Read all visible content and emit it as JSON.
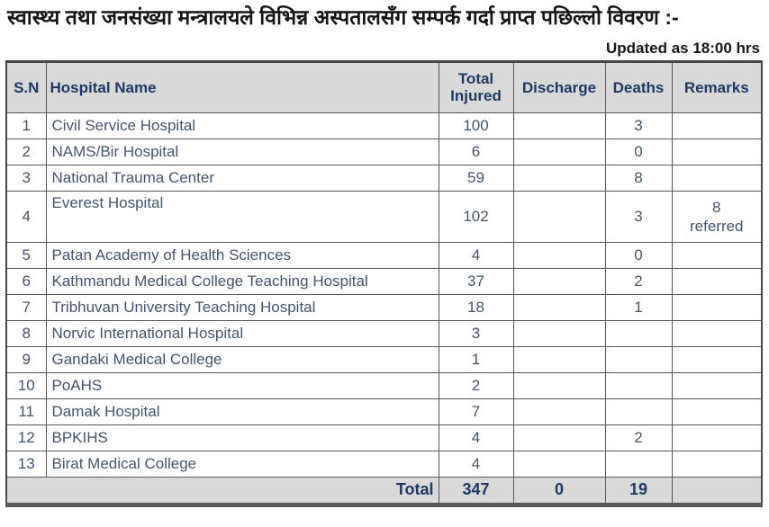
{
  "title": "स्वास्थ्य तथा जनसंख्या मन्त्रालयले विभिन्न अस्पतालसँग सम्पर्क गर्दा प्राप्त पछिल्लो विवरण :-",
  "updated": "Updated as 18:00 hrs",
  "colors": {
    "header_bg": "#d9d9d9",
    "header_text": "#1f3864",
    "body_text": "#44546a",
    "border": "#565656"
  },
  "table": {
    "headers": [
      "S.N",
      "Hospital Name",
      "Total Injured",
      "Discharge",
      "Deaths",
      "Remarks"
    ],
    "rows": [
      {
        "sn": "1",
        "name": "Civil Service Hospital",
        "injured": "100",
        "discharge": "",
        "deaths": "3",
        "remarks": ""
      },
      {
        "sn": "2",
        "name": "NAMS/Bir Hospital",
        "injured": "6",
        "discharge": "",
        "deaths": "0",
        "remarks": ""
      },
      {
        "sn": "3",
        "name": "National Trauma Center",
        "injured": "59",
        "discharge": "",
        "deaths": "8",
        "remarks": ""
      },
      {
        "sn": "4",
        "name": "Everest Hospital",
        "injured": "102",
        "discharge": "",
        "deaths": "3",
        "remarks": "8\nreferred"
      },
      {
        "sn": "5",
        "name": "Patan Academy of Health Sciences",
        "injured": "4",
        "discharge": "",
        "deaths": "0",
        "remarks": ""
      },
      {
        "sn": "6",
        "name": "Kathmandu Medical College Teaching Hospital",
        "injured": "37",
        "discharge": "",
        "deaths": "2",
        "remarks": ""
      },
      {
        "sn": "7",
        "name": "Tribhuvan University Teaching Hospital",
        "injured": "18",
        "discharge": "",
        "deaths": "1",
        "remarks": ""
      },
      {
        "sn": "8",
        "name": "Norvic International Hospital",
        "injured": "3",
        "discharge": "",
        "deaths": "",
        "remarks": ""
      },
      {
        "sn": "9",
        "name": "Gandaki Medical College",
        "injured": "1",
        "discharge": "",
        "deaths": "",
        "remarks": ""
      },
      {
        "sn": "10",
        "name": "PoAHS",
        "injured": "2",
        "discharge": "",
        "deaths": "",
        "remarks": ""
      },
      {
        "sn": "11",
        "name": "Damak Hospital",
        "injured": "7",
        "discharge": "",
        "deaths": "",
        "remarks": ""
      },
      {
        "sn": "12",
        "name": "BPKIHS",
        "injured": "4",
        "discharge": "",
        "deaths": "2",
        "remarks": ""
      },
      {
        "sn": "13",
        "name": "Birat Medical College",
        "injured": "4",
        "discharge": "",
        "deaths": "",
        "remarks": ""
      }
    ],
    "total": {
      "label": "Total",
      "injured": "347",
      "discharge": "0",
      "deaths": "19",
      "remarks": ""
    }
  }
}
